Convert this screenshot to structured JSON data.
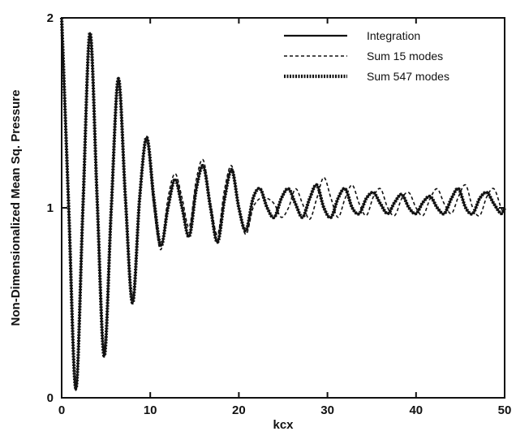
{
  "chart_data": {
    "type": "line",
    "xlabel": "kcx",
    "ylabel": "Non-Dimensionalized  Mean Sq.  Pressure",
    "xlim": [
      0,
      50
    ],
    "ylim": [
      0,
      2
    ],
    "xticks": [
      0,
      10,
      20,
      30,
      40,
      50
    ],
    "xtick_labels": [
      "0",
      "10",
      "20",
      "30",
      "40",
      "50"
    ],
    "yticks": [
      0,
      1,
      2
    ],
    "ytick_labels": [
      "0",
      "1",
      "2"
    ],
    "grid": false,
    "legend_position": "top-right",
    "series": [
      {
        "name": "Integration",
        "style": "solid",
        "color": "#111111",
        "x": [
          0,
          0.8,
          1.6,
          2.4,
          3.2,
          4.0,
          4.8,
          5.6,
          6.4,
          7.2,
          8.0,
          8.8,
          9.6,
          10.4,
          11.2,
          12.0,
          12.8,
          13.6,
          14.4,
          15.2,
          16.0,
          16.8,
          17.6,
          18.4,
          19.2,
          20.0,
          20.8,
          21.6,
          22.4,
          23.2,
          24.0,
          24.8,
          25.6,
          26.4,
          27.2,
          28.0,
          28.8,
          29.6,
          30.4,
          31.2,
          32.0,
          32.8,
          33.6,
          34.4,
          35.2,
          36.0,
          36.8,
          37.6,
          38.4,
          39.2,
          40.0,
          40.8,
          41.6,
          42.4,
          43.2,
          44.0,
          44.8,
          45.6,
          46.4,
          47.2,
          48.0,
          48.8,
          49.6,
          50.0
        ],
        "values": [
          2.0,
          1.0,
          0.04,
          1.0,
          1.92,
          1.05,
          0.22,
          1.0,
          1.68,
          1.05,
          0.5,
          1.05,
          1.37,
          1.05,
          0.8,
          1.0,
          1.15,
          1.0,
          0.85,
          1.1,
          1.22,
          1.0,
          0.82,
          1.05,
          1.2,
          1.0,
          0.88,
          1.05,
          1.1,
          1.0,
          0.95,
          1.05,
          1.1,
          1.02,
          0.95,
          1.05,
          1.12,
          1.0,
          0.95,
          1.05,
          1.1,
          1.0,
          0.97,
          1.05,
          1.08,
          1.02,
          0.97,
          1.03,
          1.07,
          1.0,
          0.97,
          1.03,
          1.06,
          1.0,
          0.97,
          1.05,
          1.1,
          1.0,
          0.97,
          1.05,
          1.08,
          1.02,
          0.97,
          1.0
        ]
      },
      {
        "name": "Sum 15 modes",
        "style": "dashed",
        "color": "#111111",
        "x": [
          0,
          0.8,
          1.6,
          2.4,
          3.2,
          4.0,
          4.8,
          5.6,
          6.4,
          7.2,
          8.0,
          8.8,
          9.6,
          10.4,
          11.2,
          12.0,
          12.8,
          13.6,
          14.4,
          15.2,
          16.0,
          16.8,
          17.6,
          18.4,
          19.2,
          20.0,
          20.8,
          21.6,
          22.4,
          23.2,
          24.0,
          24.8,
          25.6,
          26.4,
          27.2,
          28.0,
          28.8,
          29.6,
          30.4,
          31.2,
          32.0,
          32.8,
          33.6,
          34.4,
          35.2,
          36.0,
          36.8,
          37.6,
          38.4,
          39.2,
          40.0,
          40.8,
          41.6,
          42.4,
          43.2,
          44.0,
          44.8,
          45.6,
          46.4,
          47.2,
          48.0,
          48.8,
          49.6,
          50.0
        ],
        "values": [
          2.0,
          1.02,
          0.05,
          1.02,
          1.9,
          1.05,
          0.23,
          1.02,
          1.66,
          1.05,
          0.52,
          1.05,
          1.36,
          1.0,
          0.78,
          1.05,
          1.18,
          1.05,
          0.9,
          1.15,
          1.25,
          1.02,
          0.86,
          1.1,
          1.22,
          1.0,
          0.86,
          1.0,
          1.05,
          1.05,
          1.02,
          0.95,
          1.0,
          1.1,
          1.02,
          0.94,
          1.05,
          1.16,
          1.05,
          0.95,
          1.05,
          1.12,
          1.02,
          0.96,
          1.06,
          1.1,
          1.0,
          0.96,
          1.05,
          1.08,
          1.0,
          0.96,
          1.05,
          1.1,
          1.02,
          0.97,
          1.06,
          1.12,
          1.0,
          0.96,
          1.06,
          1.1,
          1.0,
          0.97
        ]
      },
      {
        "name": "Sum 547 modes",
        "style": "dotted-thick",
        "color": "#111111",
        "x": [
          0,
          0.8,
          1.6,
          2.4,
          3.2,
          4.0,
          4.8,
          5.6,
          6.4,
          7.2,
          8.0,
          8.8,
          9.6,
          10.4,
          11.2,
          12.0,
          12.8,
          13.6,
          14.4,
          15.2,
          16.0,
          16.8,
          17.6,
          18.4,
          19.2,
          20.0,
          20.8,
          21.6,
          22.4,
          23.2,
          24.0,
          24.8,
          25.6,
          26.4,
          27.2,
          28.0,
          28.8,
          29.6,
          30.4,
          31.2,
          32.0,
          32.8,
          33.6,
          34.4,
          35.2,
          36.0,
          36.8,
          37.6,
          38.4,
          39.2,
          40.0,
          40.8,
          41.6,
          42.4,
          43.2,
          44.0,
          44.8,
          45.6,
          46.4,
          47.2,
          48.0,
          48.8,
          49.6,
          50.0
        ],
        "values": [
          2.0,
          1.0,
          0.05,
          1.0,
          1.92,
          1.05,
          0.22,
          1.0,
          1.68,
          1.05,
          0.5,
          1.05,
          1.37,
          1.05,
          0.8,
          1.0,
          1.15,
          1.0,
          0.85,
          1.1,
          1.22,
          1.0,
          0.82,
          1.05,
          1.2,
          1.0,
          0.88,
          1.05,
          1.1,
          1.0,
          0.95,
          1.05,
          1.1,
          1.02,
          0.95,
          1.05,
          1.12,
          1.0,
          0.95,
          1.05,
          1.1,
          1.0,
          0.97,
          1.05,
          1.08,
          1.02,
          0.97,
          1.03,
          1.07,
          1.0,
          0.97,
          1.03,
          1.06,
          1.0,
          0.97,
          1.05,
          1.1,
          1.0,
          0.97,
          1.05,
          1.08,
          1.02,
          0.97,
          1.0
        ]
      }
    ]
  }
}
